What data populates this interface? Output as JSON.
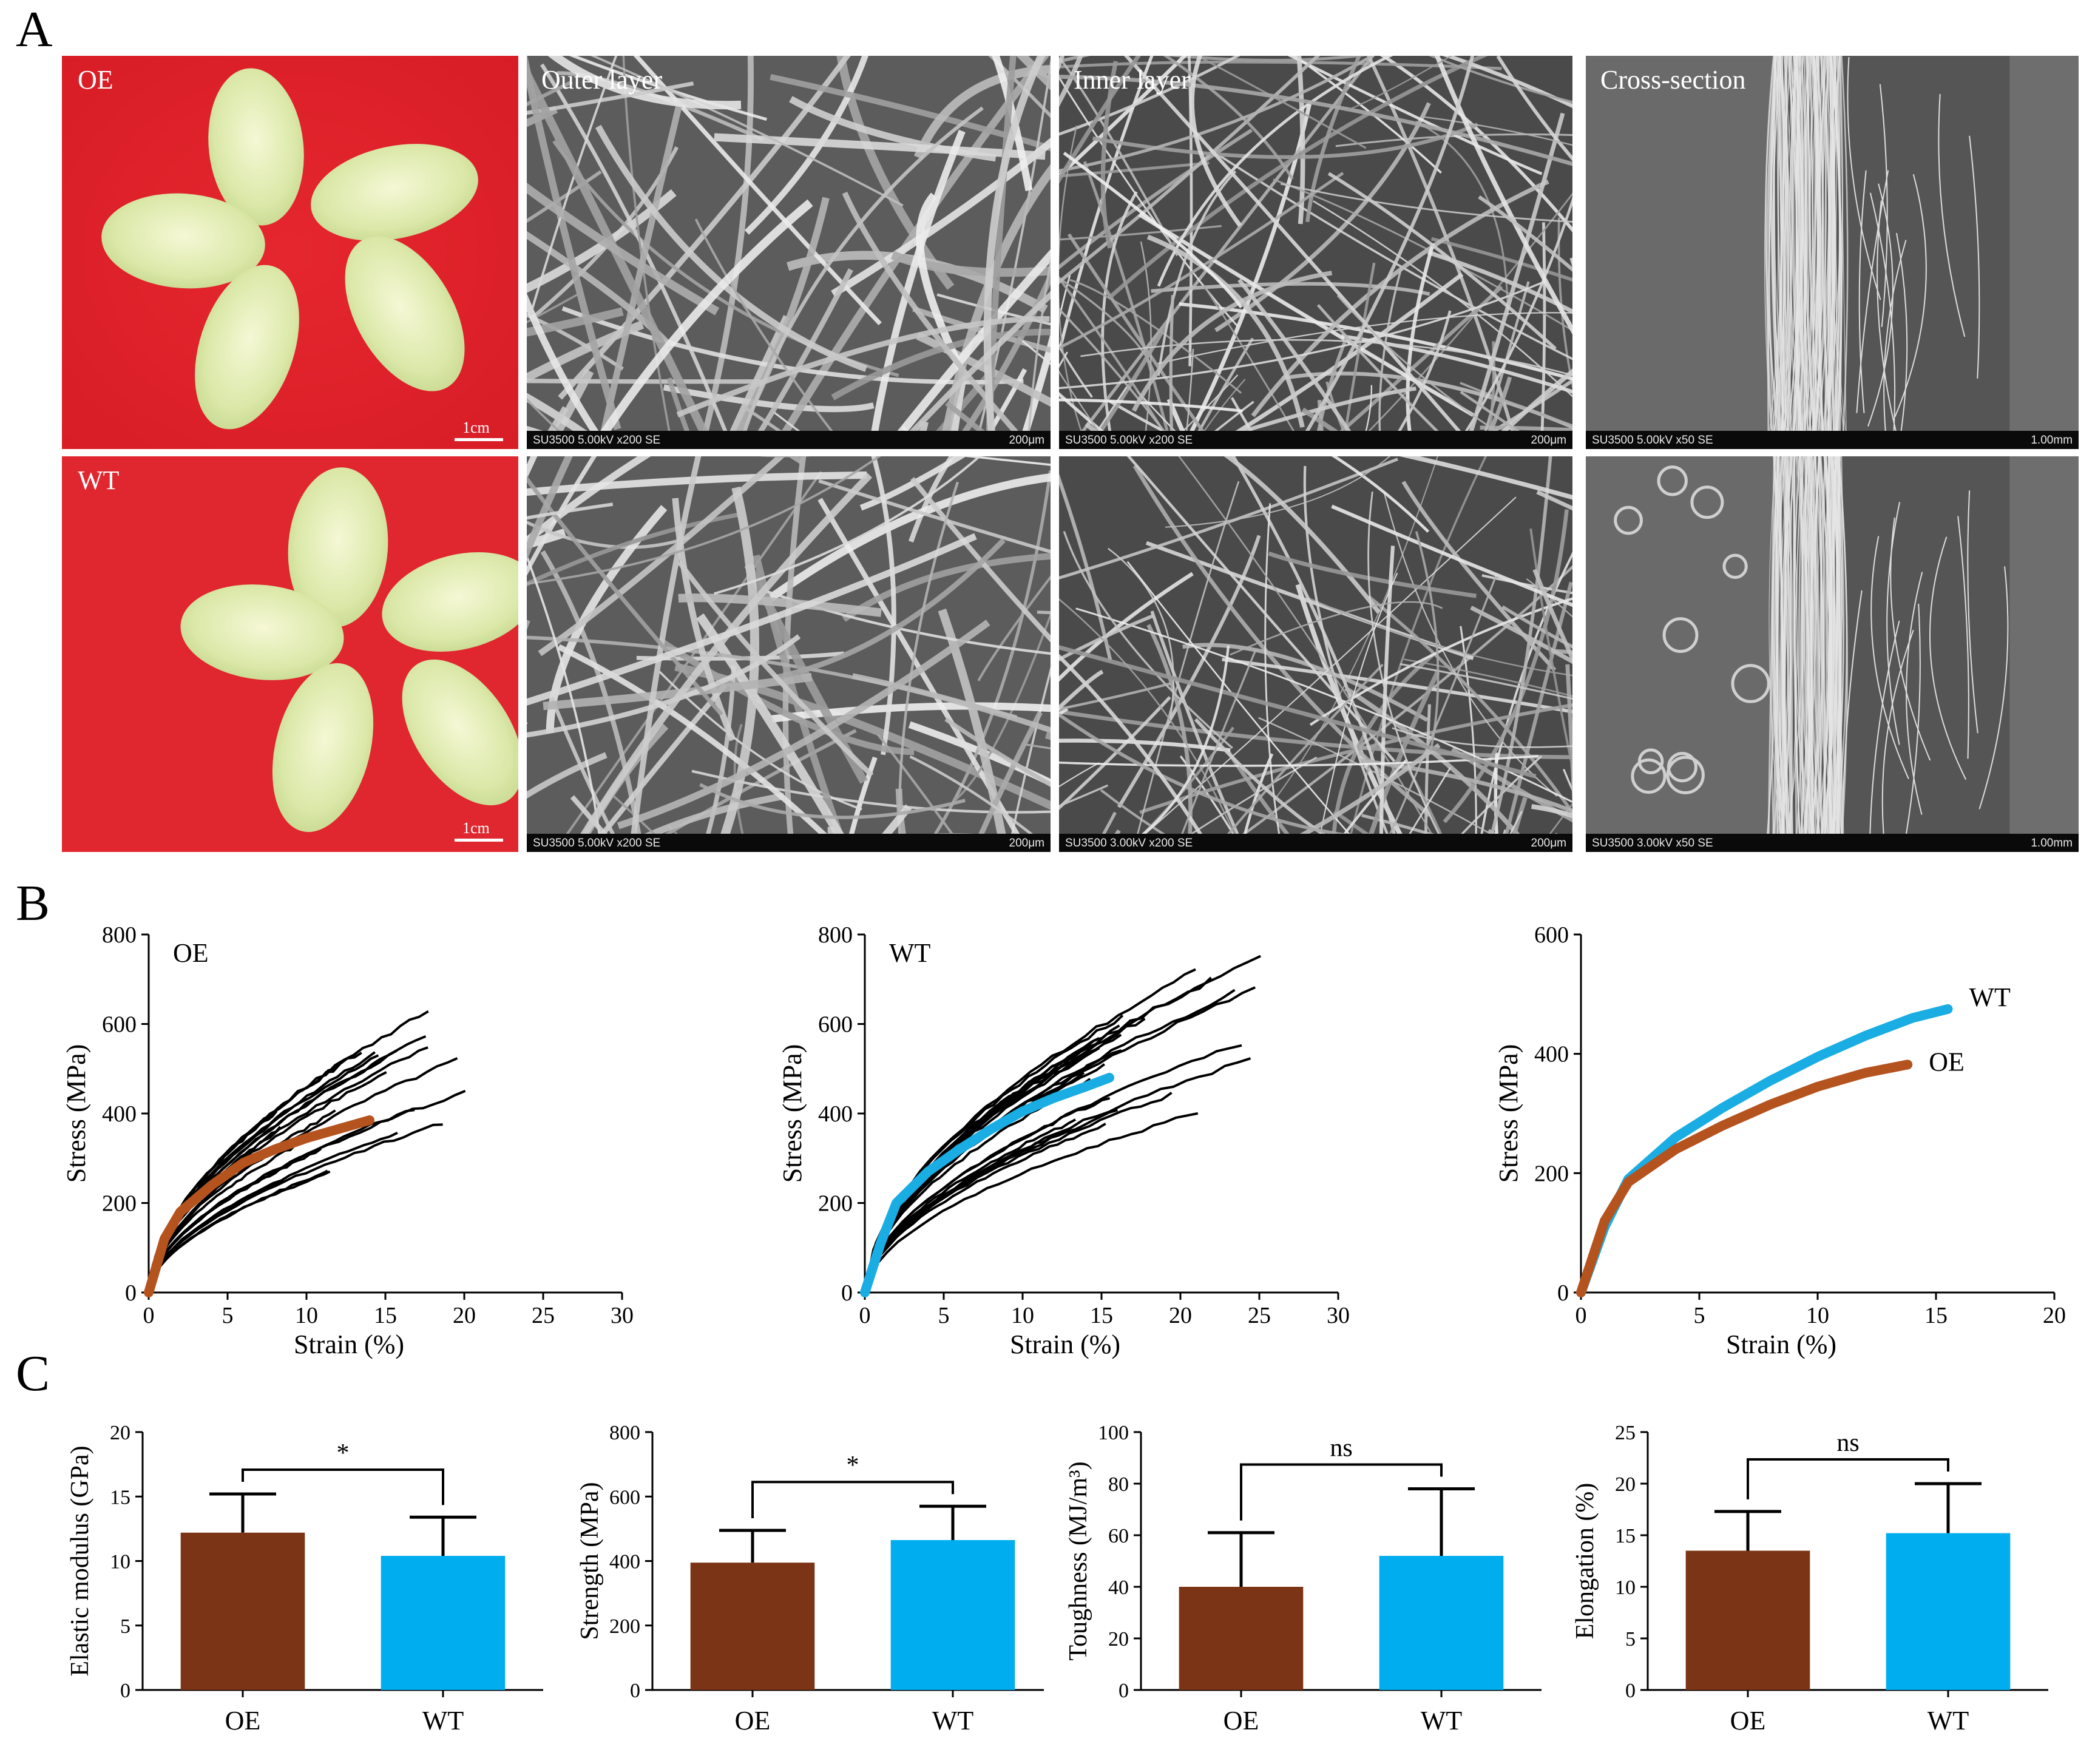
{
  "panels": {
    "a": "A",
    "b": "B",
    "c": "C"
  },
  "photos": [
    {
      "label": "OE",
      "scale": "1cm"
    },
    {
      "label": "WT",
      "scale": "1cm"
    }
  ],
  "sem": {
    "titles": [
      "Outer layer",
      "Inner layer",
      "Cross-section"
    ],
    "rows": [
      [
        {
          "info": "SU3500 5.00kV x200 SE",
          "scale": "200μm"
        },
        {
          "info": "SU3500 5.00kV x200 SE",
          "scale": "200μm"
        },
        {
          "info": "SU3500 5.00kV x50 SE",
          "scale": "1.00mm"
        }
      ],
      [
        {
          "info": "SU3500 5.00kV x200 SE",
          "scale": "200μm"
        },
        {
          "info": "SU3500 3.00kV x200 SE",
          "scale": "200μm"
        },
        {
          "info": "SU3500 3.00kV x50 SE",
          "scale": "1.00mm"
        }
      ]
    ]
  },
  "colors": {
    "oe_brown": "#b5531e",
    "wt_blue": "#1aade3",
    "bar_brown": "#7b3415",
    "bar_blue": "#00aeef",
    "cocoon_bg": "#e8242b"
  },
  "chart_data": [
    {
      "type": "line",
      "name": "OE",
      "xlabel": "Strain (%)",
      "ylabel": "Stress  (MPa)",
      "xlim": [
        0,
        30
      ],
      "ylim": [
        0,
        800
      ],
      "xticks": [
        "0",
        "5",
        "10",
        "15",
        "20",
        "25",
        "30"
      ],
      "yticks": [
        "0",
        "200",
        "400",
        "600",
        "800"
      ],
      "series": [
        {
          "x": [
            0,
            1,
            2,
            4,
            6,
            8,
            10,
            12,
            14
          ],
          "y": [
            0,
            120,
            180,
            240,
            290,
            320,
            345,
            365,
            385
          ]
        }
      ]
    },
    {
      "type": "line",
      "name": "WT",
      "xlabel": "Strain (%)",
      "ylabel": "Stress  (MPa)",
      "xlim": [
        0,
        30
      ],
      "ylim": [
        0,
        800
      ],
      "xticks": [
        "0",
        "5",
        "10",
        "15",
        "20",
        "25",
        "30"
      ],
      "yticks": [
        "0",
        "200",
        "400",
        "600",
        "800"
      ],
      "series": [
        {
          "x": [
            0,
            1,
            2,
            4,
            6,
            8,
            10,
            12,
            14,
            15.5
          ],
          "y": [
            0,
            110,
            200,
            270,
            320,
            365,
            405,
            435,
            460,
            480
          ]
        }
      ]
    },
    {
      "type": "line",
      "xlabel": "Strain (%)",
      "ylabel": "Stress  (MPa)",
      "xlim": [
        0,
        20
      ],
      "ylim": [
        0,
        600
      ],
      "xticks": [
        "0",
        "5",
        "10",
        "15",
        "20"
      ],
      "yticks": [
        "0",
        "200",
        "400",
        "600"
      ],
      "series": [
        {
          "name": "WT",
          "x": [
            0,
            1,
            2,
            4,
            6,
            8,
            10,
            12,
            14,
            15.5
          ],
          "y": [
            0,
            110,
            190,
            260,
            310,
            355,
            395,
            430,
            460,
            475
          ]
        },
        {
          "name": "OE",
          "x": [
            0,
            1,
            2,
            4,
            6,
            8,
            10,
            12,
            13.8
          ],
          "y": [
            0,
            120,
            185,
            240,
            280,
            315,
            345,
            368,
            382
          ]
        }
      ]
    },
    {
      "type": "bar",
      "ylabel": "Elastic modulus (GPa)",
      "categories": [
        "OE",
        "WT"
      ],
      "values": [
        12.2,
        10.4
      ],
      "errors": [
        3.0,
        3.0
      ],
      "ylim": [
        0,
        20
      ],
      "yticks": [
        "0",
        "5",
        "10",
        "15",
        "20"
      ],
      "significance": "*"
    },
    {
      "type": "bar",
      "ylabel": "Strength (MPa)",
      "categories": [
        "OE",
        "WT"
      ],
      "values": [
        395,
        465
      ],
      "errors": [
        100,
        105
      ],
      "ylim": [
        0,
        800
      ],
      "yticks": [
        "0",
        "200",
        "400",
        "600",
        "800"
      ],
      "significance": "*"
    },
    {
      "type": "bar",
      "ylabel": "Toughness (MJ/m³)",
      "categories": [
        "OE",
        "WT"
      ],
      "values": [
        40,
        52
      ],
      "errors": [
        21,
        26
      ],
      "ylim": [
        0,
        100
      ],
      "yticks": [
        "0",
        "20",
        "40",
        "60",
        "80",
        "100"
      ],
      "significance": "ns"
    },
    {
      "type": "bar",
      "ylabel": "Elongation (%)",
      "categories": [
        "OE",
        "WT"
      ],
      "values": [
        13.5,
        15.2
      ],
      "errors": [
        3.8,
        4.8
      ],
      "ylim": [
        0,
        25
      ],
      "yticks": [
        "0",
        "5",
        "10",
        "15",
        "20",
        "25"
      ],
      "significance": "ns"
    }
  ]
}
